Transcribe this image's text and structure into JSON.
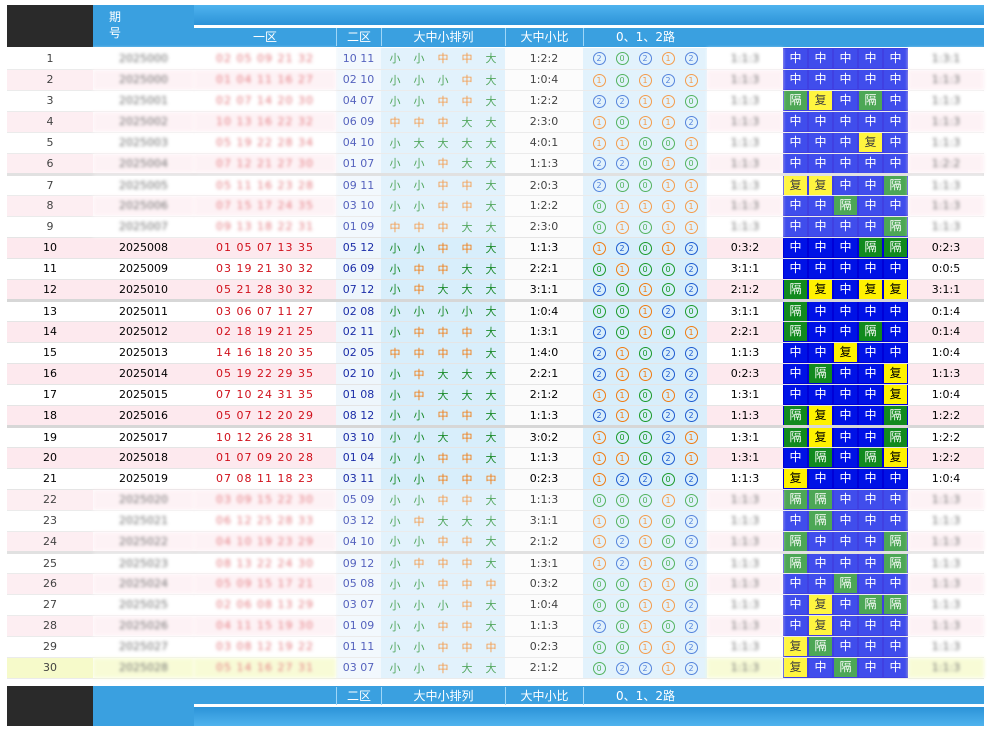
{
  "header": {
    "period_label": "期号",
    "zone1_label": "一区",
    "zone2_label": "二区",
    "sizeseq_label": "大中小排列",
    "sizeratio_label": "大中小比",
    "route_label": "0、1、2路"
  },
  "footer": {
    "zone2_label": "二区",
    "sizeseq_label": "大中小排列",
    "sizeratio_label": "大中小比",
    "route_label": "0、1、2路"
  },
  "tag_labels": {
    "zh": "中",
    "ge": "隔",
    "fu": "复"
  },
  "rows": [
    {
      "n": "1",
      "period": "2025000",
      "z1": "02 05 09 21 32",
      "z2": "10 11",
      "seq": [
        "小",
        "小",
        "中",
        "中",
        "大"
      ],
      "ratio": "1:2:2",
      "route": [
        "2",
        "0",
        "2",
        "1",
        "2"
      ],
      "r1": "1:1:3",
      "tags": [
        "zh",
        "zh",
        "zh",
        "zh",
        "zh"
      ],
      "r2": "1:3:1",
      "blur": true
    },
    {
      "n": "2",
      "period": "2025000",
      "z1": "01 04 11 16 27",
      "z2": "02 10",
      "seq": [
        "小",
        "小",
        "小",
        "中",
        "大"
      ],
      "ratio": "1:0:4",
      "route": [
        "1",
        "0",
        "1",
        "2",
        "1"
      ],
      "r1": "1:1:3",
      "tags": [
        "zh",
        "zh",
        "zh",
        "zh",
        "zh"
      ],
      "r2": "1:1:3",
      "blur": true
    },
    {
      "n": "3",
      "period": "2025001",
      "z1": "02 07 14 20 30",
      "z2": "04 07",
      "seq": [
        "小",
        "小",
        "中",
        "中",
        "大"
      ],
      "ratio": "1:2:2",
      "route": [
        "2",
        "2",
        "1",
        "1",
        "0"
      ],
      "r1": "1:1:3",
      "tags": [
        "ge",
        "fu",
        "zh",
        "ge",
        "zh"
      ],
      "r2": "1:1:3",
      "blur": true
    },
    {
      "n": "4",
      "period": "2025002",
      "z1": "10 13 16 22 32",
      "z2": "06 09",
      "seq": [
        "中",
        "中",
        "中",
        "大",
        "大"
      ],
      "ratio": "2:3:0",
      "route": [
        "1",
        "0",
        "1",
        "1",
        "2"
      ],
      "r1": "1:1:3",
      "tags": [
        "zh",
        "zh",
        "zh",
        "zh",
        "zh"
      ],
      "r2": "1:1:3",
      "blur": true
    },
    {
      "n": "5",
      "period": "2025003",
      "z1": "05 19 22 28 34",
      "z2": "04 10",
      "seq": [
        "小",
        "大",
        "大",
        "大",
        "大"
      ],
      "ratio": "4:0:1",
      "route": [
        "1",
        "1",
        "0",
        "0",
        "1"
      ],
      "r1": "1:1:3",
      "tags": [
        "zh",
        "zh",
        "zh",
        "fu",
        "zh"
      ],
      "r2": "1:1:3",
      "blur": true
    },
    {
      "n": "6",
      "period": "2025004",
      "z1": "07 12 21 27 30",
      "z2": "01 07",
      "seq": [
        "小",
        "小",
        "中",
        "大",
        "大"
      ],
      "ratio": "1:1:3",
      "route": [
        "2",
        "2",
        "0",
        "1",
        "0"
      ],
      "r1": "1:1:3",
      "tags": [
        "zh",
        "zh",
        "zh",
        "zh",
        "zh"
      ],
      "r2": "1:2:2",
      "blur": true
    },
    {
      "n": "7",
      "period": "2025005",
      "z1": "05 11 16 23 28",
      "z2": "09 11",
      "seq": [
        "小",
        "小",
        "中",
        "中",
        "大"
      ],
      "ratio": "2:0:3",
      "route": [
        "2",
        "0",
        "0",
        "1",
        "1"
      ],
      "r1": "1:1:3",
      "tags": [
        "fu",
        "fu",
        "zh",
        "zh",
        "ge"
      ],
      "r2": "1:1:3",
      "blur": true,
      "sep": true
    },
    {
      "n": "8",
      "period": "2025006",
      "z1": "07 15 17 24 35",
      "z2": "03 10",
      "seq": [
        "小",
        "小",
        "中",
        "中",
        "大"
      ],
      "ratio": "1:2:2",
      "route": [
        "0",
        "1",
        "1",
        "1",
        "1"
      ],
      "r1": "1:1:3",
      "tags": [
        "zh",
        "zh",
        "ge",
        "zh",
        "zh"
      ],
      "r2": "1:1:3",
      "blur": true
    },
    {
      "n": "9",
      "period": "2025007",
      "z1": "09 13 18 22 31",
      "z2": "01 09",
      "seq": [
        "中",
        "中",
        "中",
        "大",
        "大"
      ],
      "ratio": "2:3:0",
      "route": [
        "0",
        "1",
        "0",
        "1",
        "1"
      ],
      "r1": "1:1:3",
      "tags": [
        "zh",
        "zh",
        "zh",
        "zh",
        "ge"
      ],
      "r2": "1:1:3",
      "blur": true
    },
    {
      "n": "10",
      "period": "2025008",
      "z1": "01 05 07 13 35",
      "z2": "05 12",
      "seq": [
        "小",
        "小",
        "中",
        "中",
        "大"
      ],
      "ratio": "1:1:3",
      "route": [
        "1",
        "2",
        "0",
        "1",
        "2"
      ],
      "r1": "0:3:2",
      "tags": [
        "zh",
        "zh",
        "zh",
        "ge",
        "ge"
      ],
      "r2": "0:2:3"
    },
    {
      "n": "11",
      "period": "2025009",
      "z1": "03 19 21 30 32",
      "z2": "06 09",
      "seq": [
        "小",
        "中",
        "中",
        "大",
        "大"
      ],
      "ratio": "2:2:1",
      "route": [
        "0",
        "1",
        "0",
        "0",
        "2"
      ],
      "r1": "3:1:1",
      "tags": [
        "zh",
        "zh",
        "zh",
        "zh",
        "zh"
      ],
      "r2": "0:0:5"
    },
    {
      "n": "12",
      "period": "2025010",
      "z1": "05 21 28 30 32",
      "z2": "07 12",
      "seq": [
        "小",
        "中",
        "大",
        "大",
        "大"
      ],
      "ratio": "3:1:1",
      "route": [
        "2",
        "0",
        "1",
        "0",
        "2"
      ],
      "r1": "2:1:2",
      "tags": [
        "ge",
        "fu",
        "zh",
        "fu",
        "fu"
      ],
      "r2": "3:1:1"
    },
    {
      "n": "13",
      "period": "2025011",
      "z1": "03 06 07 11 27",
      "z2": "02 08",
      "seq": [
        "小",
        "小",
        "小",
        "小",
        "大"
      ],
      "ratio": "1:0:4",
      "route": [
        "0",
        "0",
        "1",
        "2",
        "0"
      ],
      "r1": "3:1:1",
      "tags": [
        "ge",
        "zh",
        "zh",
        "zh",
        "zh"
      ],
      "r2": "0:1:4",
      "sep": true
    },
    {
      "n": "14",
      "period": "2025012",
      "z1": "02 18 19 21 25",
      "z2": "02 11",
      "seq": [
        "小",
        "中",
        "中",
        "中",
        "大"
      ],
      "ratio": "1:3:1",
      "route": [
        "2",
        "0",
        "1",
        "0",
        "1"
      ],
      "r1": "2:2:1",
      "tags": [
        "ge",
        "zh",
        "zh",
        "ge",
        "zh"
      ],
      "r2": "0:1:4"
    },
    {
      "n": "15",
      "period": "2025013",
      "z1": "14 16 18 20 35",
      "z2": "02 05",
      "seq": [
        "中",
        "中",
        "中",
        "中",
        "大"
      ],
      "ratio": "1:4:0",
      "route": [
        "2",
        "1",
        "0",
        "2",
        "2"
      ],
      "r1": "1:1:3",
      "tags": [
        "zh",
        "zh",
        "fu",
        "zh",
        "zh"
      ],
      "r2": "1:0:4"
    },
    {
      "n": "16",
      "period": "2025014",
      "z1": "05 19 22 29 35",
      "z2": "02 10",
      "seq": [
        "小",
        "中",
        "大",
        "大",
        "大"
      ],
      "ratio": "2:2:1",
      "route": [
        "2",
        "1",
        "1",
        "2",
        "2"
      ],
      "r1": "0:2:3",
      "tags": [
        "zh",
        "ge",
        "zh",
        "zh",
        "fu"
      ],
      "r2": "1:1:3"
    },
    {
      "n": "17",
      "period": "2025015",
      "z1": "07 10 24 31 35",
      "z2": "01 08",
      "seq": [
        "小",
        "中",
        "大",
        "大",
        "大"
      ],
      "ratio": "2:1:2",
      "route": [
        "1",
        "1",
        "0",
        "1",
        "2"
      ],
      "r1": "1:3:1",
      "tags": [
        "zh",
        "zh",
        "zh",
        "zh",
        "fu"
      ],
      "r2": "1:0:4"
    },
    {
      "n": "18",
      "period": "2025016",
      "z1": "05 07 12 20 29",
      "z2": "08 12",
      "seq": [
        "小",
        "小",
        "中",
        "中",
        "大"
      ],
      "ratio": "1:1:3",
      "route": [
        "2",
        "1",
        "0",
        "2",
        "2"
      ],
      "r1": "1:1:3",
      "tags": [
        "ge",
        "fu",
        "zh",
        "zh",
        "ge"
      ],
      "r2": "1:2:2"
    },
    {
      "n": "19",
      "period": "2025017",
      "z1": "10 12 26 28 31",
      "z2": "03 10",
      "seq": [
        "小",
        "小",
        "大",
        "中",
        "大"
      ],
      "ratio": "3:0:2",
      "route": [
        "1",
        "0",
        "0",
        "2",
        "1"
      ],
      "r1": "1:3:1",
      "tags": [
        "ge",
        "fu",
        "zh",
        "zh",
        "ge"
      ],
      "r2": "1:2:2",
      "sep": true
    },
    {
      "n": "20",
      "period": "2025018",
      "z1": "01 07 09 20 28",
      "z2": "01 04",
      "seq": [
        "小",
        "小",
        "中",
        "中",
        "大"
      ],
      "ratio": "1:1:3",
      "route": [
        "1",
        "1",
        "0",
        "2",
        "1"
      ],
      "r1": "1:3:1",
      "tags": [
        "zh",
        "ge",
        "zh",
        "ge",
        "fu"
      ],
      "r2": "1:2:2"
    },
    {
      "n": "21",
      "period": "2025019",
      "z1": "07 08 11 18 23",
      "z2": "03 11",
      "seq": [
        "小",
        "小",
        "中",
        "中",
        "中"
      ],
      "ratio": "0:2:3",
      "route": [
        "1",
        "2",
        "2",
        "0",
        "2"
      ],
      "r1": "1:1:3",
      "tags": [
        "fu",
        "zh",
        "zh",
        "zh",
        "zh"
      ],
      "r2": "1:0:4"
    },
    {
      "n": "22",
      "period": "2025020",
      "z1": "03 09 15 22 30",
      "z2": "05 09",
      "seq": [
        "小",
        "小",
        "中",
        "中",
        "大"
      ],
      "ratio": "1:1:3",
      "route": [
        "0",
        "0",
        "0",
        "1",
        "0"
      ],
      "r1": "1:1:3",
      "tags": [
        "ge",
        "ge",
        "zh",
        "zh",
        "zh"
      ],
      "r2": "1:1:3",
      "blur": true
    },
    {
      "n": "23",
      "period": "2025021",
      "z1": "06 12 25 28 33",
      "z2": "03 12",
      "seq": [
        "小",
        "中",
        "大",
        "大",
        "大"
      ],
      "ratio": "3:1:1",
      "route": [
        "1",
        "0",
        "1",
        "0",
        "2"
      ],
      "r1": "1:1:3",
      "tags": [
        "zh",
        "ge",
        "zh",
        "zh",
        "zh"
      ],
      "r2": "1:1:3",
      "blur": true
    },
    {
      "n": "24",
      "period": "2025022",
      "z1": "04 10 19 23 29",
      "z2": "04 10",
      "seq": [
        "小",
        "小",
        "中",
        "中",
        "大"
      ],
      "ratio": "2:1:2",
      "route": [
        "1",
        "2",
        "1",
        "0",
        "2"
      ],
      "r1": "1:1:3",
      "tags": [
        "ge",
        "zh",
        "zh",
        "zh",
        "ge"
      ],
      "r2": "1:1:3",
      "blur": true
    },
    {
      "n": "25",
      "period": "2025023",
      "z1": "08 13 22 24 30",
      "z2": "09 12",
      "seq": [
        "小",
        "中",
        "中",
        "中",
        "大"
      ],
      "ratio": "1:3:1",
      "route": [
        "1",
        "2",
        "1",
        "0",
        "2"
      ],
      "r1": "1:1:3",
      "tags": [
        "ge",
        "zh",
        "zh",
        "zh",
        "ge"
      ],
      "r2": "1:1:3",
      "blur": true,
      "sep": true
    },
    {
      "n": "26",
      "period": "2025024",
      "z1": "05 09 15 17 21",
      "z2": "05 08",
      "seq": [
        "小",
        "小",
        "中",
        "中",
        "中"
      ],
      "ratio": "0:3:2",
      "route": [
        "0",
        "0",
        "1",
        "1",
        "0"
      ],
      "r1": "1:1:3",
      "tags": [
        "zh",
        "zh",
        "ge",
        "zh",
        "zh"
      ],
      "r2": "1:1:3",
      "blur": true
    },
    {
      "n": "27",
      "period": "2025025",
      "z1": "02 06 08 13 29",
      "z2": "03 07",
      "seq": [
        "小",
        "小",
        "小",
        "中",
        "大"
      ],
      "ratio": "1:0:4",
      "route": [
        "0",
        "0",
        "1",
        "1",
        "2"
      ],
      "r1": "1:1:3",
      "tags": [
        "zh",
        "fu",
        "zh",
        "ge",
        "ge"
      ],
      "r2": "1:1:3",
      "blur": true
    },
    {
      "n": "28",
      "period": "2025026",
      "z1": "04 11 15 19 30",
      "z2": "01 09",
      "seq": [
        "小",
        "小",
        "中",
        "中",
        "大"
      ],
      "ratio": "1:1:3",
      "route": [
        "2",
        "0",
        "1",
        "0",
        "2"
      ],
      "r1": "1:1:3",
      "tags": [
        "zh",
        "fu",
        "zh",
        "zh",
        "zh"
      ],
      "r2": "1:1:3",
      "blur": true
    },
    {
      "n": "29",
      "period": "2025027",
      "z1": "03 08 12 19 22",
      "z2": "01 11",
      "seq": [
        "小",
        "小",
        "中",
        "中",
        "中"
      ],
      "ratio": "0:2:3",
      "route": [
        "0",
        "0",
        "1",
        "1",
        "2"
      ],
      "r1": "1:1:3",
      "tags": [
        "fu",
        "ge",
        "zh",
        "zh",
        "zh"
      ],
      "r2": "1:1:3",
      "blur": true
    },
    {
      "n": "30",
      "period": "2025028",
      "z1": "05 14 16 27 31",
      "z2": "03 07",
      "seq": [
        "小",
        "小",
        "中",
        "大",
        "大"
      ],
      "ratio": "2:1:2",
      "route": [
        "0",
        "2",
        "2",
        "1",
        "2"
      ],
      "r1": "1:1:3",
      "tags": [
        "fu",
        "zh",
        "ge",
        "zh",
        "zh"
      ],
      "r2": "1:1:3",
      "blur": true,
      "last": true
    }
  ]
}
